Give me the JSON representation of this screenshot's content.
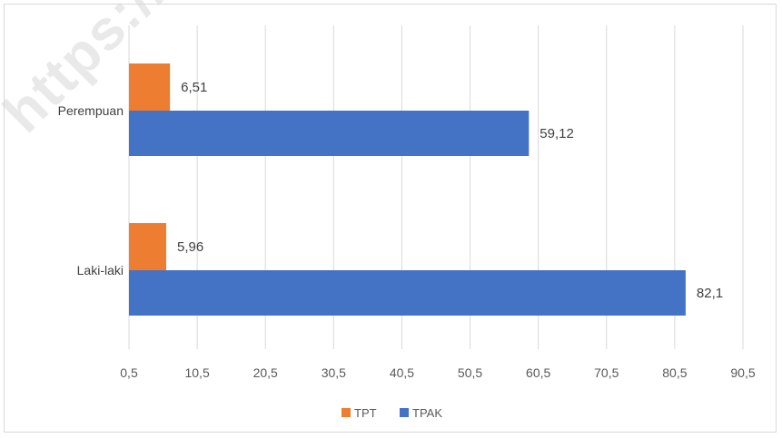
{
  "chart_data": {
    "type": "bar",
    "orientation": "horizontal",
    "categories": [
      "Perempuan",
      "Laki-laki"
    ],
    "series": [
      {
        "name": "TPT",
        "color": "#ED7D31",
        "values": [
          6.51,
          5.96
        ]
      },
      {
        "name": "TPAK",
        "color": "#4472C4",
        "values": [
          59.12,
          82.1
        ]
      }
    ],
    "data_labels": {
      "TPT": [
        "6,51",
        "5,96"
      ],
      "TPAK": [
        "59,12",
        "82,1"
      ]
    },
    "x_ticks": [
      "0,5",
      "10,5",
      "20,5",
      "30,5",
      "40,5",
      "50,5",
      "60,5",
      "70,5",
      "80,5",
      "90,5"
    ],
    "xlim": [
      0.5,
      90.5
    ],
    "grid": true,
    "legend_position": "bottom",
    "title": "",
    "xlabel": "",
    "ylabel": ""
  },
  "watermark": {
    "text": "https://sa"
  }
}
